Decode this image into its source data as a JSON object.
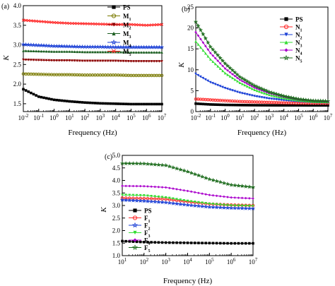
{
  "chart_data": [
    {
      "panel_label": "(a)",
      "type": "line",
      "xlabel": "Frequency (Hz)",
      "ylabel": "K",
      "x_scale": "log",
      "xlim": [
        0.01,
        10000000
      ],
      "ylim": [
        1.3,
        4.0
      ],
      "x_ticks": [
        0.01,
        0.1,
        1,
        10,
        100,
        1000,
        10000,
        100000,
        1000000,
        10000000
      ],
      "x_tick_labels": [
        {
          "base": "10",
          "exp": "-2"
        },
        {
          "base": "10",
          "exp": "-1"
        },
        {
          "base": "10",
          "exp": "0"
        },
        {
          "base": "10",
          "exp": "1"
        },
        {
          "base": "10",
          "exp": "2"
        },
        {
          "base": "10",
          "exp": "3"
        },
        {
          "base": "10",
          "exp": "4"
        },
        {
          "base": "10",
          "exp": "5"
        },
        {
          "base": "10",
          "exp": "6"
        },
        {
          "base": "10",
          "exp": "7"
        }
      ],
      "y_ticks": [
        1.5,
        2.0,
        2.5,
        3.0,
        3.5,
        4.0
      ],
      "y_tick_labels": [
        "1.5",
        "2.0",
        "2.5",
        "3.0",
        "3.5",
        "4.0"
      ],
      "legend_position": "top-right",
      "series": [
        {
          "name": "PS",
          "base": "PS",
          "sub": "",
          "color": "#000000",
          "marker": "square",
          "x": [
            0.01,
            0.1,
            1,
            10,
            100,
            1000,
            10000,
            100000,
            1000000,
            10000000
          ],
          "y": [
            1.87,
            1.68,
            1.6,
            1.56,
            1.53,
            1.51,
            1.5,
            1.49,
            1.49,
            1.49
          ]
        },
        {
          "name": "M1",
          "base": "M",
          "sub": "1",
          "color": "#7a7a00",
          "marker": "circle",
          "x": [
            0.01,
            0.1,
            1,
            10,
            100,
            1000,
            10000,
            100000,
            1000000,
            10000000
          ],
          "y": [
            2.26,
            2.25,
            2.24,
            2.24,
            2.23,
            2.23,
            2.23,
            2.22,
            2.22,
            2.22
          ]
        },
        {
          "name": "M2",
          "base": "M",
          "sub": "2",
          "color": "#8b0000",
          "marker": "triangle-down",
          "x": [
            0.01,
            0.1,
            1,
            10,
            100,
            1000,
            10000,
            100000,
            1000000,
            10000000
          ],
          "y": [
            2.62,
            2.61,
            2.6,
            2.6,
            2.59,
            2.59,
            2.59,
            2.58,
            2.58,
            2.58
          ]
        },
        {
          "name": "M3",
          "base": "M",
          "sub": "3",
          "color": "#1b5e20",
          "marker": "triangle-up",
          "x": [
            0.01,
            0.1,
            1,
            10,
            100,
            1000,
            10000,
            100000,
            1000000,
            10000000
          ],
          "y": [
            2.85,
            2.84,
            2.83,
            2.83,
            2.82,
            2.82,
            2.82,
            2.81,
            2.81,
            2.81
          ]
        },
        {
          "name": "M4",
          "base": "M",
          "sub": "4",
          "color": "#1a3fd6",
          "marker": "star",
          "x": [
            0.01,
            0.1,
            1,
            10,
            100,
            1000,
            10000,
            100000,
            1000000,
            10000000
          ],
          "y": [
            3.01,
            2.99,
            2.97,
            2.96,
            2.95,
            2.95,
            2.94,
            2.94,
            2.94,
            2.94
          ]
        },
        {
          "name": "M5",
          "base": "M",
          "sub": "5",
          "color": "#ff2a2a",
          "marker": "x",
          "x": [
            0.01,
            0.1,
            1,
            10,
            100,
            1000,
            10000,
            100000,
            1000000,
            10000000
          ],
          "y": [
            3.63,
            3.6,
            3.57,
            3.55,
            3.54,
            3.53,
            3.52,
            3.52,
            3.5,
            3.52
          ]
        }
      ]
    },
    {
      "panel_label": "(b)",
      "type": "line",
      "xlabel": "Frequency (Hz)",
      "ylabel": "K",
      "x_scale": "log",
      "xlim": [
        0.01,
        10000000
      ],
      "ylim": [
        0,
        25
      ],
      "x_ticks": [
        0.01,
        0.1,
        1,
        10,
        100,
        1000,
        10000,
        100000,
        1000000,
        10000000
      ],
      "x_tick_labels": [
        {
          "base": "10",
          "exp": "-2"
        },
        {
          "base": "10",
          "exp": "-1"
        },
        {
          "base": "10",
          "exp": "0"
        },
        {
          "base": "10",
          "exp": "1"
        },
        {
          "base": "10",
          "exp": "2"
        },
        {
          "base": "10",
          "exp": "3"
        },
        {
          "base": "10",
          "exp": "4"
        },
        {
          "base": "10",
          "exp": "5"
        },
        {
          "base": "10",
          "exp": "6"
        },
        {
          "base": "10",
          "exp": "7"
        }
      ],
      "y_ticks": [
        0,
        5,
        10,
        15,
        20,
        25
      ],
      "y_tick_labels": [
        "0",
        "5",
        "10",
        "15",
        "20",
        "25"
      ],
      "legend_position": "top-right",
      "series": [
        {
          "name": "PS",
          "base": "PS",
          "sub": "",
          "color": "#000000",
          "marker": "square",
          "x": [
            0.01,
            0.1,
            1,
            10,
            100,
            1000,
            10000,
            100000,
            1000000,
            10000000
          ],
          "y": [
            1.9,
            1.7,
            1.6,
            1.55,
            1.52,
            1.5,
            1.49,
            1.49,
            1.48,
            1.48
          ]
        },
        {
          "name": "N1",
          "base": "N",
          "sub": "1",
          "color": "#ff2a2a",
          "marker": "circle",
          "x": [
            0.01,
            0.1,
            1,
            10,
            100,
            1000,
            10000,
            100000,
            1000000,
            10000000
          ],
          "y": [
            3.0,
            2.8,
            2.6,
            2.4,
            2.3,
            2.2,
            2.1,
            2.05,
            2.0,
            2.0
          ]
        },
        {
          "name": "N2",
          "base": "N",
          "sub": "2",
          "color": "#1a3fd6",
          "marker": "triangle-down",
          "x": [
            0.01,
            0.1,
            1,
            10,
            100,
            1000,
            10000,
            100000,
            1000000,
            10000000
          ],
          "y": [
            9.0,
            7.0,
            5.6,
            4.5,
            3.7,
            3.1,
            2.7,
            2.4,
            2.2,
            2.1
          ]
        },
        {
          "name": "N3",
          "base": "N",
          "sub": "3",
          "color": "#33dd33",
          "marker": "triangle-up",
          "x": [
            0.01,
            0.1,
            1,
            10,
            100,
            1000,
            10000,
            100000,
            1000000,
            10000000
          ],
          "y": [
            16.8,
            12.5,
            9.2,
            6.9,
            5.2,
            4.0,
            3.2,
            2.7,
            2.4,
            2.3
          ]
        },
        {
          "name": "N4",
          "base": "N",
          "sub": "4",
          "color": "#aa00cc",
          "marker": "diamond",
          "x": [
            0.01,
            0.1,
            1,
            10,
            100,
            1000,
            10000,
            100000,
            1000000,
            10000000
          ],
          "y": [
            19.0,
            14.0,
            10.3,
            7.6,
            5.7,
            4.4,
            3.5,
            2.9,
            2.6,
            2.4
          ]
        },
        {
          "name": "N5",
          "base": "N",
          "sub": "5",
          "color": "#1b6b1b",
          "marker": "star",
          "x": [
            0.01,
            0.1,
            1,
            10,
            100,
            1000,
            10000,
            100000,
            1000000,
            10000000
          ],
          "y": [
            21.5,
            15.5,
            11.5,
            8.3,
            6.2,
            4.7,
            3.7,
            3.0,
            2.6,
            2.5
          ]
        }
      ]
    },
    {
      "panel_label": "(c)",
      "type": "line",
      "xlabel": "Frequency (Hz)",
      "ylabel": "K",
      "x_scale": "log",
      "xlim": [
        10,
        10000000
      ],
      "ylim": [
        1.0,
        5.0
      ],
      "x_ticks": [
        10,
        100,
        1000,
        10000,
        100000,
        1000000,
        10000000
      ],
      "x_tick_labels": [
        {
          "base": "10",
          "exp": "1"
        },
        {
          "base": "10",
          "exp": "2"
        },
        {
          "base": "10",
          "exp": "3"
        },
        {
          "base": "10",
          "exp": "4"
        },
        {
          "base": "10",
          "exp": "5"
        },
        {
          "base": "10",
          "exp": "6"
        },
        {
          "base": "10",
          "exp": "7"
        }
      ],
      "y_ticks": [
        1.0,
        1.5,
        2.0,
        2.5,
        3.0,
        3.5,
        4.0,
        4.5,
        5.0
      ],
      "y_tick_labels": [
        "1.0",
        "1.5",
        "2.0",
        "2.5",
        "3.0",
        "3.5",
        "4.0",
        "4.5",
        "5.0"
      ],
      "legend_position": "top-left",
      "series": [
        {
          "name": "PS",
          "base": "PS",
          "sub": "",
          "color": "#000000",
          "marker": "square",
          "x": [
            10,
            100,
            1000,
            10000,
            100000,
            1000000,
            10000000
          ],
          "y": [
            1.58,
            1.54,
            1.52,
            1.51,
            1.5,
            1.49,
            1.49
          ]
        },
        {
          "name": "F1",
          "base": "F",
          "sub": "1",
          "color": "#ff2a2a",
          "marker": "circle",
          "x": [
            10,
            100,
            1000,
            10000,
            100000,
            1000000,
            10000000
          ],
          "y": [
            3.3,
            3.28,
            3.25,
            3.15,
            3.06,
            3.02,
            3.0
          ]
        },
        {
          "name": "F2",
          "base": "F",
          "sub": "2",
          "color": "#1a3fd6",
          "marker": "star",
          "x": [
            10,
            100,
            1000,
            10000,
            100000,
            1000000,
            10000000
          ],
          "y": [
            3.22,
            3.18,
            3.12,
            3.02,
            2.94,
            2.9,
            2.88
          ]
        },
        {
          "name": "F3",
          "base": "F",
          "sub": "3",
          "color": "#33dd33",
          "marker": "triangle-down",
          "x": [
            10,
            100,
            1000,
            10000,
            100000,
            1000000,
            10000000
          ],
          "y": [
            3.42,
            3.4,
            3.32,
            3.18,
            3.07,
            3.0,
            2.98
          ]
        },
        {
          "name": "F4",
          "base": "F",
          "sub": "4",
          "color": "#aa00cc",
          "marker": "diamond",
          "x": [
            10,
            100,
            1000,
            10000,
            100000,
            1000000,
            10000000
          ],
          "y": [
            3.78,
            3.77,
            3.72,
            3.58,
            3.42,
            3.32,
            3.28
          ]
        },
        {
          "name": "F5",
          "base": "F",
          "sub": "5",
          "color": "#1b6b1b",
          "marker": "star",
          "x": [
            10,
            100,
            1000,
            10000,
            100000,
            1000000,
            10000000
          ],
          "y": [
            4.68,
            4.67,
            4.6,
            4.35,
            4.05,
            3.82,
            3.73
          ]
        }
      ]
    }
  ]
}
